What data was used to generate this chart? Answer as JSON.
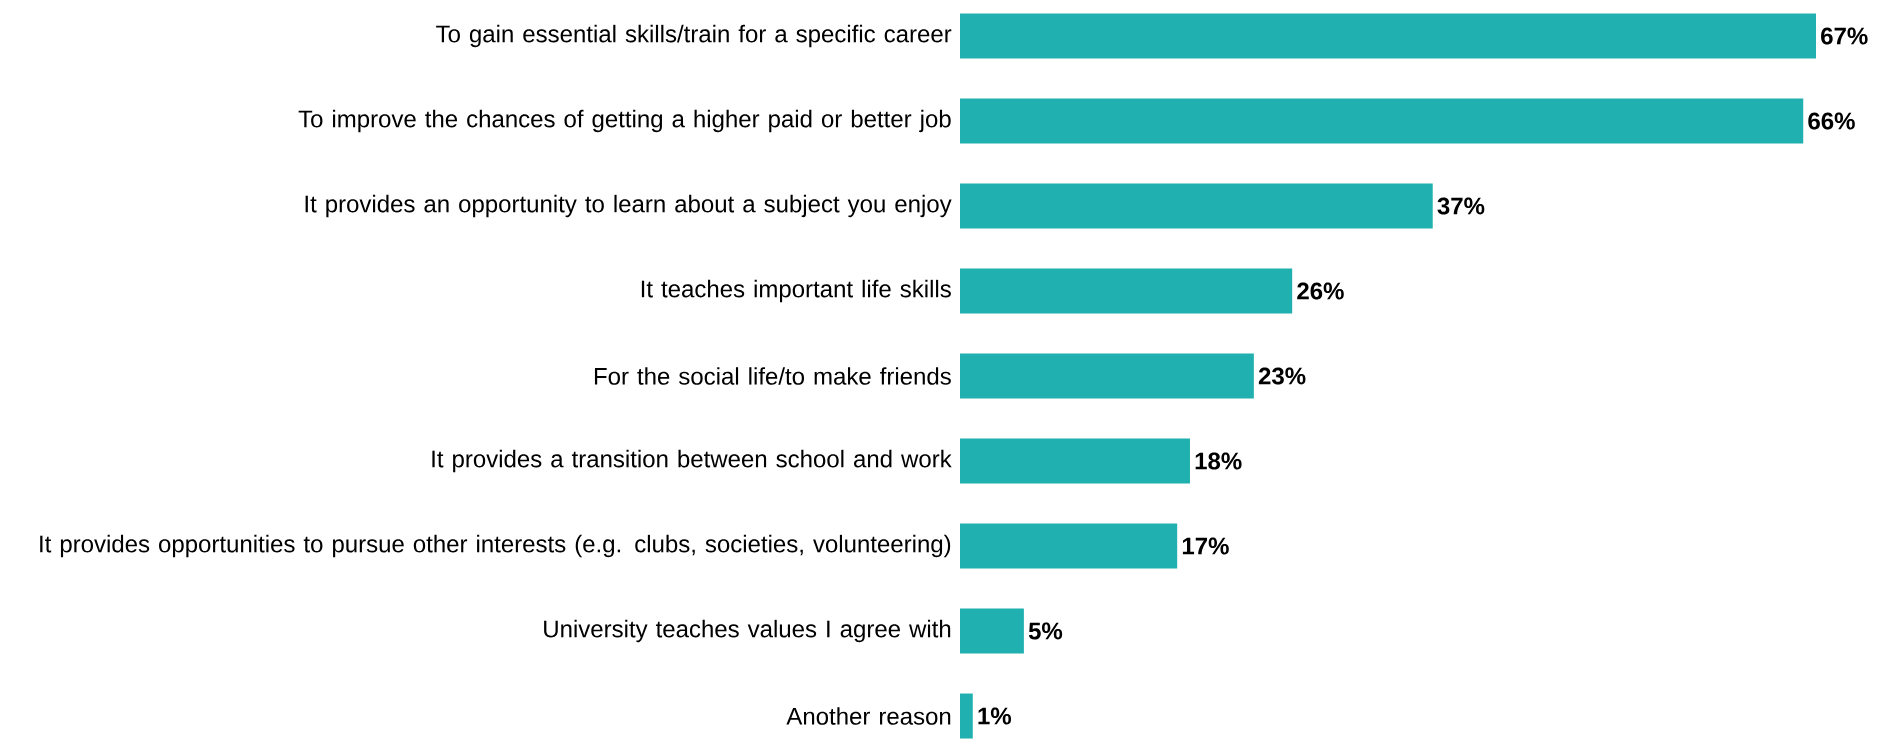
{
  "chart_data": {
    "type": "bar",
    "orientation": "horizontal",
    "categories": [
      "To gain essential skills/train for a specific career",
      "To improve the chances of getting a higher paid or better job",
      "It provides an opportunity to learn about a subject you enjoy",
      "It teaches important life skills",
      "For the social life/to make friends",
      "It provides a transition between school and work",
      "It provides opportunities to pursue other interests (e.g. clubs, societies, volunteering)",
      "University teaches values I agree with",
      "Another reason"
    ],
    "values": [
      67,
      66,
      37,
      26,
      23,
      18,
      17,
      5,
      1
    ],
    "value_labels": [
      "67%",
      "66%",
      "37%",
      "26%",
      "23%",
      "18%",
      "17%",
      "5%",
      "1%"
    ],
    "color": "#20b0b0",
    "relative": false
  }
}
